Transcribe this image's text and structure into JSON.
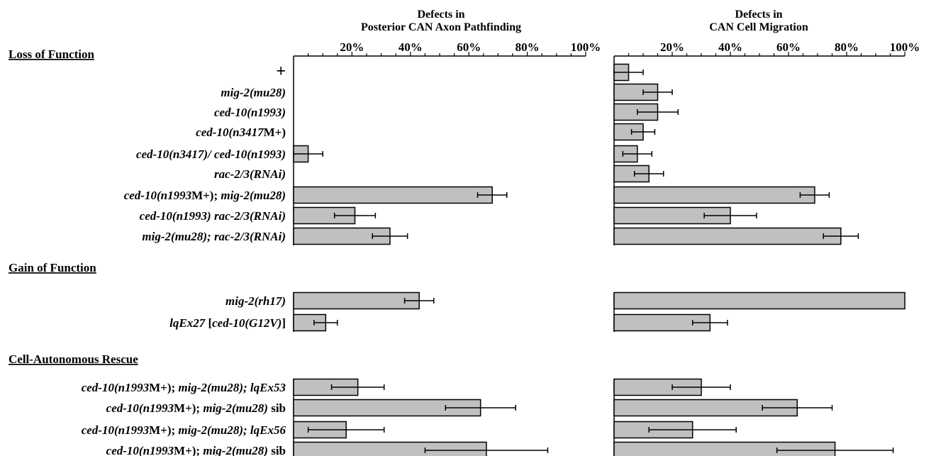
{
  "chart_data": [
    {
      "type": "bar",
      "orientation": "horizontal",
      "title": [
        "Defects in",
        "Posterior CAN Axon Pathfinding"
      ],
      "xlim": [
        0,
        100
      ],
      "tick_labels": [
        "20%",
        "40%",
        "60%",
        "80%",
        "100%"
      ],
      "values": [
        0,
        0,
        0,
        0,
        5,
        0,
        68,
        21,
        33,
        43,
        11,
        22,
        64,
        18,
        66
      ],
      "errors": [
        0,
        0,
        0,
        0,
        5,
        0,
        5,
        7,
        6,
        5,
        4,
        9,
        12,
        13,
        21
      ]
    },
    {
      "type": "bar",
      "orientation": "horizontal",
      "title": [
        "Defects in",
        "CAN Cell Migration"
      ],
      "xlim": [
        0,
        100
      ],
      "tick_labels": [
        "20%",
        "40%",
        "60%",
        "80%",
        "100%"
      ],
      "values": [
        5,
        15,
        15,
        10,
        8,
        12,
        69,
        40,
        78,
        100,
        33,
        30,
        63,
        27,
        76
      ],
      "errors": [
        5,
        5,
        7,
        4,
        5,
        5,
        5,
        9,
        6,
        0,
        6,
        10,
        12,
        15,
        20
      ]
    }
  ],
  "groups": [
    {
      "title": "Loss of Function",
      "rows": [
        0,
        8
      ]
    },
    {
      "title": "Gain of Function",
      "rows": [
        9,
        10
      ]
    },
    {
      "title": "Cell-Autonomous Rescue",
      "rows": [
        11,
        14
      ]
    }
  ],
  "row_labels": [
    [
      {
        "t": "+",
        "i": false
      }
    ],
    [
      {
        "t": "mig-2(mu28)",
        "i": true
      }
    ],
    [
      {
        "t": "ced-10(n1993)",
        "i": true
      }
    ],
    [
      {
        "t": "ced-10(n3417",
        "i": true
      },
      {
        "t": "M+)",
        "i": false
      }
    ],
    [
      {
        "t": "ced-10(n3417)/ ced-10(n1993)",
        "i": true
      }
    ],
    [
      {
        "t": "rac-2/3(RNAi)",
        "i": true
      }
    ],
    [
      {
        "t": "ced-10(n1993",
        "i": true
      },
      {
        "t": "M+); ",
        "i": false
      },
      {
        "t": "mig-2(mu28)",
        "i": true
      }
    ],
    [
      {
        "t": "ced-10(n1993) rac-2/3(RNAi)",
        "i": true
      }
    ],
    [
      {
        "t": "mig-2(mu28); rac-2/3(RNAi)",
        "i": true
      }
    ],
    [
      {
        "t": "mig-2(rh17)",
        "i": true
      }
    ],
    [
      {
        "t": "lqEx27 ",
        "i": true
      },
      {
        "t": "[",
        "i": false
      },
      {
        "t": "ced-10(G12V)",
        "i": true
      },
      {
        "t": "]",
        "i": false
      }
    ],
    [
      {
        "t": "ced-10(n1993",
        "i": true
      },
      {
        "t": "M+); ",
        "i": false
      },
      {
        "t": "mig-2(mu28); lqEx53",
        "i": true
      }
    ],
    [
      {
        "t": "ced-10(n1993",
        "i": true
      },
      {
        "t": "M+); ",
        "i": false
      },
      {
        "t": "mig-2(mu28)",
        "i": true
      },
      {
        "t": " sib",
        "i": false
      }
    ],
    [
      {
        "t": "ced-10(n1993",
        "i": true
      },
      {
        "t": "M+); ",
        "i": false
      },
      {
        "t": "mig-2(mu28); lqEx56",
        "i": true
      }
    ],
    [
      {
        "t": "ced-10(n1993",
        "i": true
      },
      {
        "t": "M+); ",
        "i": false
      },
      {
        "t": "mig-2(mu28)",
        "i": true
      },
      {
        "t": " sib",
        "i": false
      }
    ]
  ],
  "colors": {
    "bar_fill": "#c0c0c0",
    "bar_stroke": "#000000"
  }
}
